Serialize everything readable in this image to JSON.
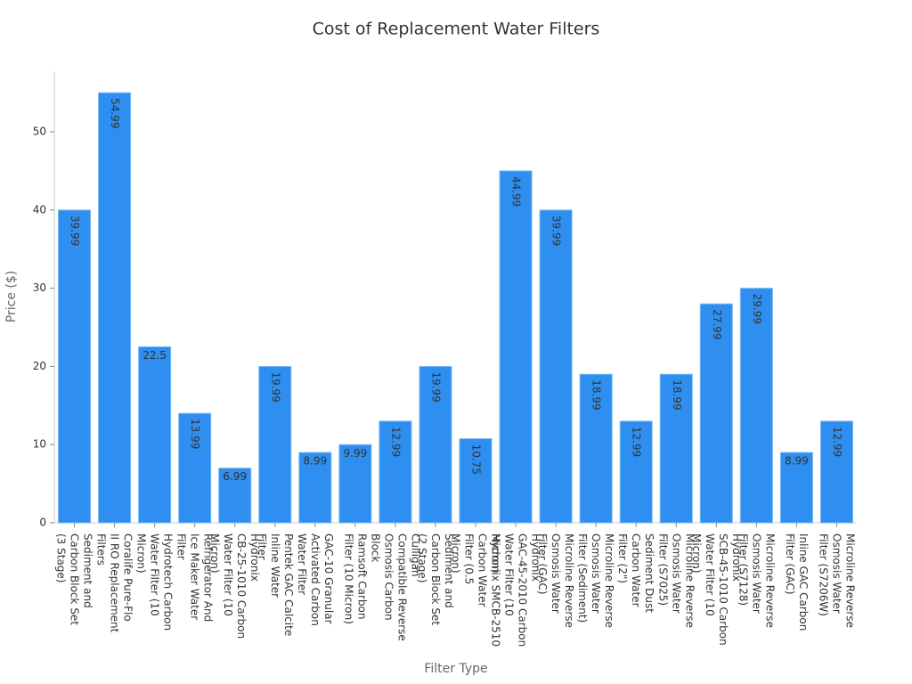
{
  "chart_data": {
    "type": "bar",
    "title": "Cost of Replacement Water Filters",
    "xlabel": "Filter Type",
    "ylabel": "Price ($)",
    "categories": [
      "Sediment and Carbon Block Set (3 Stage)",
      "Coralife Pure-Flo II RO Replacement Filters",
      "Hydrotech Carbon Water Filter (10 Micron)",
      "Refrigerator And Ice Maker Water Filter",
      "Hydronix CB-25-1010 Carbon Water Filter (10 Micron)",
      "Pentek GAC Calcite Inline Water Filter",
      "GAC-10 Granular Activated Carbon Water Filter",
      "Ramsoft Carbon Filter (10 Micron)",
      "Culligan Compatible Reverse Osmosis Carbon Block",
      "Sediment and Carbon Block Set (2 Stage)",
      "Hydronix SMCB-2510 Carbon Water Filter (0.5 Micron)",
      "Hydronix GAC-45-2010 Carbon Water Filter (10 Micron)",
      "Microline Reverse Osmosis Water Filter (GAC)",
      "Microline Reverse Osmosis Water Filter (Sediment)",
      "Sediment Dust Carbon Water Filter (2\")",
      "Microline Reverse Osmosis Water Filter (S7025)",
      "Hydronix SCB-45-1010 Carbon Water Filter (10 Micron)",
      "Microline Reverse Osmosis Water Filter (S7128)",
      "Inline GAC Carbon Filter (GAC)",
      "Microline Reverse Osmosis Water Filter (S7206W)"
    ],
    "values": [
      39.99,
      54.99,
      22.5,
      13.99,
      6.99,
      19.99,
      8.99,
      9.99,
      12.99,
      19.99,
      10.75,
      44.99,
      39.99,
      18.99,
      12.99,
      18.99,
      27.99,
      29.99,
      8.99,
      12.99
    ],
    "color": "#2e8ff0",
    "ylim": [
      0,
      57.74
    ],
    "yticks": [
      0,
      10,
      20,
      30,
      40,
      50
    ],
    "grid": false
  }
}
